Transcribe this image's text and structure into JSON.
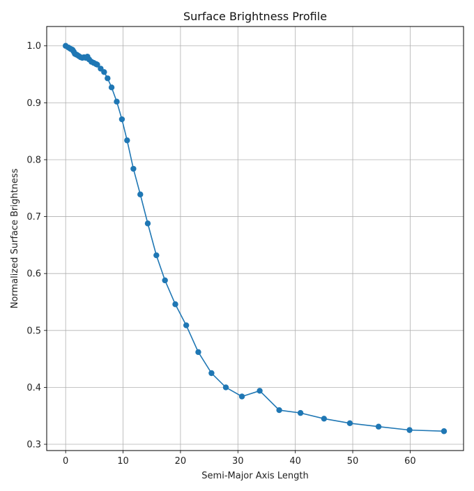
{
  "chart_data": {
    "type": "line",
    "title": "Surface Brightness Profile",
    "xlabel": "Semi-Major Axis Length",
    "ylabel": "Normalized Surface Brightness",
    "xlim": [
      -3.3,
      69.3
    ],
    "ylim": [
      0.289,
      1.034
    ],
    "xticks": [
      0,
      10,
      20,
      30,
      40,
      50,
      60
    ],
    "yticks": [
      0.3,
      0.4,
      0.5,
      0.6,
      0.7,
      0.8,
      0.9,
      1.0
    ],
    "xtick_labels": [
      "0",
      "10",
      "20",
      "30",
      "40",
      "50",
      "60"
    ],
    "ytick_labels": [
      "0.3",
      "0.4",
      "0.5",
      "0.6",
      "0.7",
      "0.8",
      "0.9",
      "1.0"
    ],
    "grid": true,
    "line_color": "#1f77b4",
    "marker": "circle",
    "series": [
      {
        "x": [
          0.0,
          0.5,
          0.8,
          1.0,
          1.2,
          1.4,
          1.6,
          1.8,
          2.0,
          2.3,
          2.6,
          2.9,
          3.2,
          3.5,
          3.8,
          4.1,
          4.5,
          4.9,
          5.3,
          5.5,
          6.1,
          6.7,
          7.3,
          8.0,
          8.9,
          9.8,
          10.7,
          11.8,
          13.0,
          14.3,
          15.8,
          17.3,
          19.1,
          21.0,
          23.1,
          25.4,
          27.9,
          30.7,
          33.8,
          37.2,
          40.9,
          45.0,
          49.5,
          54.5,
          59.9,
          65.9
        ],
        "y": [
          1.0,
          0.997,
          0.995,
          0.994,
          0.993,
          0.99,
          0.986,
          0.985,
          0.984,
          0.982,
          0.98,
          0.979,
          0.98,
          0.979,
          0.981,
          0.976,
          0.972,
          0.97,
          0.968,
          0.967,
          0.96,
          0.954,
          0.943,
          0.927,
          0.902,
          0.871,
          0.834,
          0.784,
          0.739,
          0.688,
          0.632,
          0.588,
          0.546,
          0.509,
          0.462,
          0.425,
          0.4,
          0.384,
          0.394,
          0.36,
          0.355,
          0.345,
          0.337,
          0.331,
          0.325,
          0.323
        ]
      }
    ]
  }
}
